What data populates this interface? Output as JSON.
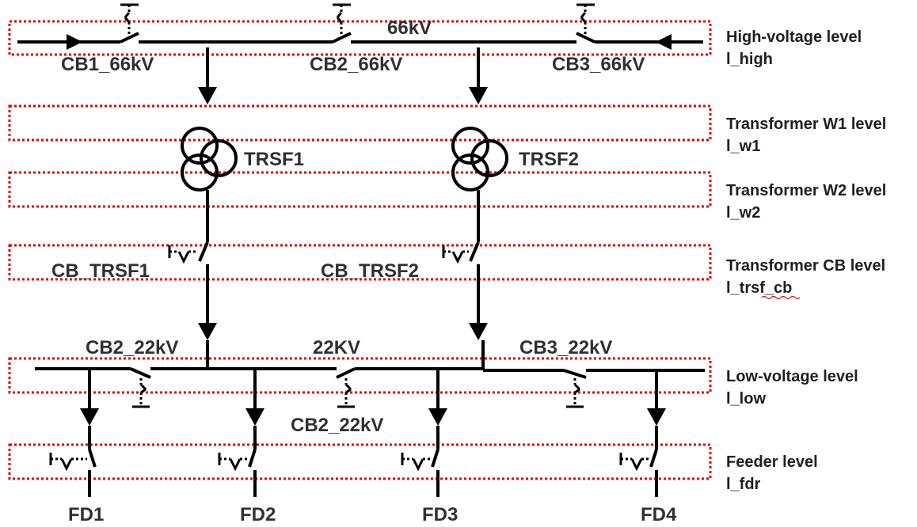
{
  "bus_labels": {
    "hv": "66kV",
    "lv": "22KV"
  },
  "breakers": {
    "cb1_66": "CB1_66kV",
    "cb2_66": "CB2_66kV",
    "cb3_66": "CB3_66kV",
    "cb_trsf1": "CB_TRSF1",
    "cb_trsf2": "CB_TRSF2",
    "cb2_22_top": "CB2_22kV",
    "cb2_22_bottom": "CB2_22kV",
    "cb3_22": "CB3_22kV"
  },
  "transformers": {
    "t1": "TRSF1",
    "t2": "TRSF2"
  },
  "feeders": [
    "FD1",
    "FD2",
    "FD3",
    "FD4"
  ],
  "levels": [
    {
      "name": "High-voltage level",
      "var": "l_high"
    },
    {
      "name": "Transformer W1 level",
      "var": "l_w1"
    },
    {
      "name": "Transformer W2 level",
      "var": "l_w2"
    },
    {
      "name": "Transformer CB level",
      "var": "l_trsf_cb"
    },
    {
      "name": "Low-voltage level",
      "var": "l_low"
    },
    {
      "name": "Feeder level",
      "var": "l_fdr"
    }
  ],
  "colors": {
    "level_border": "#e00000",
    "line": "#000000",
    "label": "#303030"
  }
}
